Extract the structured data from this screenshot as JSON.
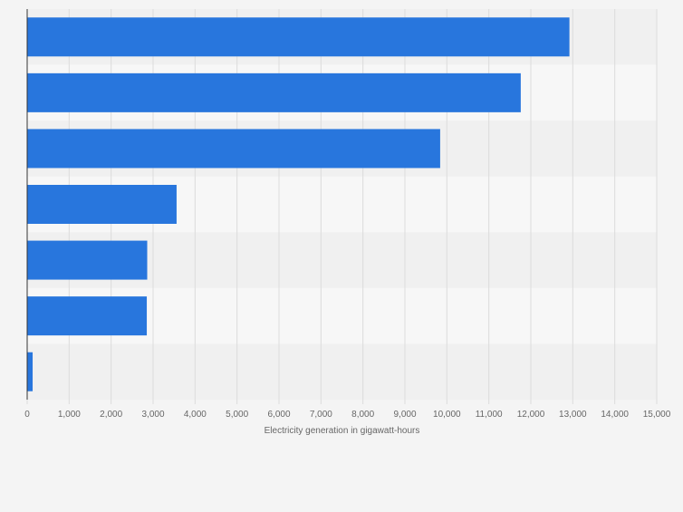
{
  "chart_data": {
    "type": "bar",
    "orientation": "horizontal",
    "categories": [
      "",
      "",
      "",
      "",
      "",
      "",
      ""
    ],
    "values": [
      12920,
      11760,
      9840,
      3560,
      2860,
      2850,
      130
    ],
    "title": "",
    "xlabel": "Electricity generation in gigawatt-hours",
    "ylabel": "",
    "xlim": [
      0,
      15000
    ],
    "x_ticks": [
      "0",
      "1,000",
      "2,000",
      "3,000",
      "4,000",
      "5,000",
      "6,000",
      "7,000",
      "8,000",
      "9,000",
      "10,000",
      "11,000",
      "12,000",
      "13,000",
      "14,000",
      "15,000"
    ],
    "grid": true,
    "legend": "none",
    "colors": {
      "bar": "#2876dd",
      "band_dark": "#f0f0f0",
      "band_light": "#f7f7f7",
      "grid": "#dcdcdc",
      "axis": "#333333",
      "tick_text": "#666666",
      "label_text": "#666666",
      "background": "#f4f4f4"
    }
  }
}
